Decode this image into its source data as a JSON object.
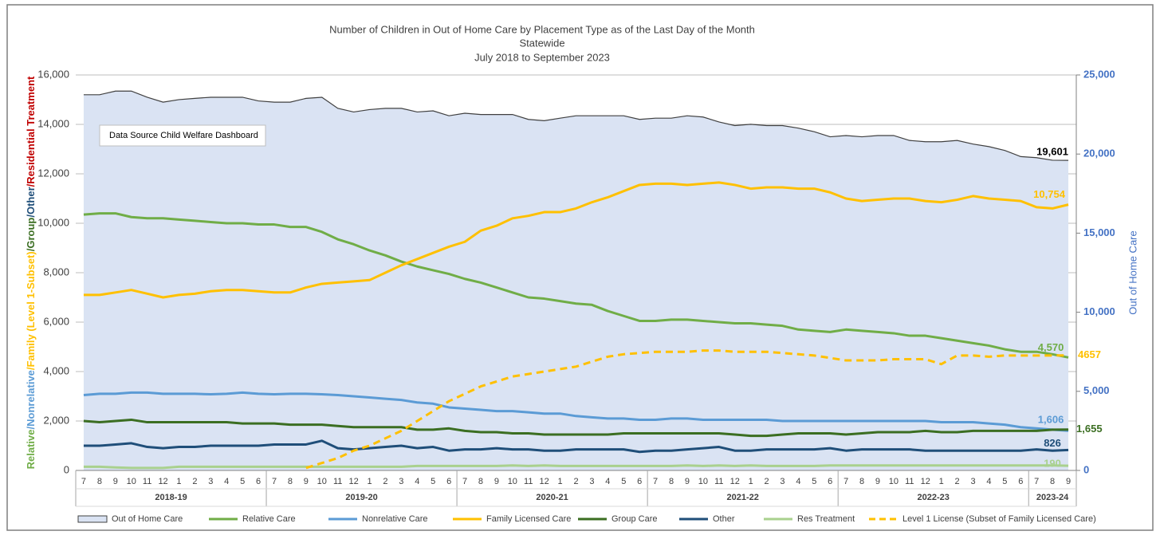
{
  "chart_data": {
    "type": "line",
    "title": [
      "Number of Children in Out of Home Care by Placement Type as of the Last Day of the Month",
      "Statewide",
      "July 2018 to September 2023"
    ],
    "annotation": "Data Source Child Welfare Dashboard",
    "ylabel_parts": [
      {
        "text": "Relative",
        "color": "#70ad47"
      },
      {
        "text": "/Nonrelative",
        "color": "#5b9bd5"
      },
      {
        "text": "/Family (Level 1-Subset)",
        "color": "#ffc000"
      },
      {
        "text": "/Group",
        "color": "#3b6e22"
      },
      {
        "text": "/Other",
        "color": "#1f4e79"
      },
      {
        "text": "/Residential Treatment",
        "color": "#c00000"
      }
    ],
    "y2label": "Out of Home Care",
    "y2label_color": "#4472c4",
    "categories": [
      "7",
      "8",
      "9",
      "10",
      "11",
      "12",
      "1",
      "2",
      "3",
      "4",
      "5",
      "6",
      "7",
      "8",
      "9",
      "10",
      "11",
      "12",
      "1",
      "2",
      "3",
      "4",
      "5",
      "6",
      "7",
      "8",
      "9",
      "10",
      "11",
      "12",
      "1",
      "2",
      "3",
      "4",
      "5",
      "6",
      "7",
      "8",
      "9",
      "10",
      "11",
      "12",
      "1",
      "2",
      "3",
      "4",
      "5",
      "6",
      "7",
      "8",
      "9",
      "10",
      "11",
      "12",
      "1",
      "2",
      "3",
      "4",
      "5",
      "6",
      "7",
      "8",
      "9"
    ],
    "x_groups": [
      {
        "label": "2018-19",
        "count": 12
      },
      {
        "label": "2019-20",
        "count": 12
      },
      {
        "label": "2020-21",
        "count": 12
      },
      {
        "label": "2021-22",
        "count": 12
      },
      {
        "label": "2022-23",
        "count": 12
      },
      {
        "label": "2023-24",
        "count": 3
      }
    ],
    "ylim": [
      0,
      16000
    ],
    "yticks": [
      0,
      {
        "value": 2000,
        "label": "2,000"
      },
      {
        "value": 4000,
        "label": "4,000"
      },
      {
        "value": 6000,
        "label": "6,000"
      },
      {
        "value": 8000,
        "label": "8,000"
      },
      {
        "value": 10000,
        "label": "10,000"
      },
      {
        "value": 12000,
        "label": "12,000"
      },
      {
        "value": 14000,
        "label": "14,000"
      },
      {
        "value": 16000,
        "label": "16,000"
      }
    ],
    "y2lim": [
      0,
      25000
    ],
    "y2ticks": [
      0,
      {
        "value": 5000,
        "label": "5,000"
      },
      {
        "value": 10000,
        "label": "10,000"
      },
      {
        "value": 15000,
        "label": "15,000"
      },
      {
        "value": 20000,
        "label": "20,000"
      },
      {
        "value": 25000,
        "label": "25,000"
      }
    ],
    "grid": true,
    "legend": "bottom",
    "series": [
      {
        "name": "Out of Home Care",
        "kind": "area",
        "axis": "y2",
        "color": "#404040",
        "fill": "#dae3f3",
        "end_label": "19,601",
        "end_label_color": "#000000",
        "values": [
          23750,
          23750,
          23980,
          23980,
          23590,
          23280,
          23440,
          23520,
          23590,
          23590,
          23590,
          23360,
          23280,
          23280,
          23520,
          23590,
          22890,
          22660,
          22810,
          22890,
          22890,
          22660,
          22730,
          22420,
          22580,
          22500,
          22500,
          22500,
          22190,
          22110,
          22270,
          22420,
          22420,
          22420,
          22420,
          22190,
          22270,
          22270,
          22420,
          22340,
          22030,
          21800,
          21880,
          21800,
          21800,
          21640,
          21410,
          21090,
          21170,
          21090,
          21170,
          21170,
          20860,
          20780,
          20780,
          20860,
          20630,
          20470,
          20230,
          19840,
          19770,
          19610,
          19601
        ]
      },
      {
        "name": "Relative Care",
        "color": "#70ad47",
        "end_label": "4,570",
        "values": [
          10350,
          10400,
          10400,
          10250,
          10200,
          10200,
          10150,
          10100,
          10050,
          10000,
          10000,
          9950,
          9950,
          9850,
          9850,
          9650,
          9350,
          9150,
          8900,
          8700,
          8450,
          8250,
          8100,
          7950,
          7750,
          7600,
          7400,
          7200,
          7000,
          6950,
          6850,
          6750,
          6700,
          6450,
          6250,
          6050,
          6050,
          6100,
          6100,
          6050,
          6000,
          5950,
          5950,
          5900,
          5850,
          5700,
          5650,
          5600,
          5700,
          5650,
          5600,
          5550,
          5450,
          5450,
          5350,
          5250,
          5150,
          5050,
          4900,
          4800,
          4800,
          4700,
          4570
        ]
      },
      {
        "name": "Nonrelative Care",
        "color": "#5b9bd5",
        "end_label": "1,606",
        "values": [
          3050,
          3100,
          3100,
          3150,
          3150,
          3100,
          3100,
          3100,
          3080,
          3100,
          3150,
          3100,
          3080,
          3100,
          3100,
          3080,
          3050,
          3000,
          2950,
          2900,
          2850,
          2750,
          2700,
          2550,
          2500,
          2450,
          2400,
          2400,
          2350,
          2300,
          2300,
          2200,
          2150,
          2100,
          2100,
          2050,
          2050,
          2100,
          2100,
          2050,
          2050,
          2050,
          2050,
          2050,
          2000,
          2000,
          2000,
          2000,
          2000,
          2000,
          2000,
          2000,
          2000,
          2000,
          1950,
          1950,
          1950,
          1900,
          1850,
          1750,
          1700,
          1650,
          1606
        ]
      },
      {
        "name": "Family Licensed Care",
        "color": "#ffc000",
        "end_label": "10,754",
        "values": [
          7100,
          7100,
          7200,
          7300,
          7150,
          7000,
          7100,
          7150,
          7250,
          7300,
          7300,
          7250,
          7200,
          7200,
          7400,
          7550,
          7600,
          7650,
          7700,
          8000,
          8300,
          8550,
          8800,
          9050,
          9250,
          9700,
          9900,
          10200,
          10300,
          10450,
          10450,
          10600,
          10850,
          11050,
          11300,
          11550,
          11600,
          11600,
          11550,
          11600,
          11650,
          11550,
          11400,
          11450,
          11450,
          11400,
          11400,
          11250,
          11000,
          10900,
          10950,
          11000,
          11000,
          10900,
          10850,
          10950,
          11100,
          11000,
          10950,
          10900,
          10650,
          10600,
          10754
        ]
      },
      {
        "name": "Group Care",
        "color": "#3b6e22",
        "end_label": "1,655",
        "values": [
          2000,
          1950,
          2000,
          2050,
          1950,
          1950,
          1950,
          1950,
          1950,
          1950,
          1900,
          1900,
          1900,
          1850,
          1850,
          1850,
          1800,
          1750,
          1750,
          1750,
          1750,
          1650,
          1650,
          1700,
          1600,
          1550,
          1550,
          1500,
          1500,
          1450,
          1450,
          1450,
          1450,
          1450,
          1500,
          1500,
          1500,
          1500,
          1500,
          1500,
          1500,
          1450,
          1400,
          1400,
          1450,
          1500,
          1500,
          1500,
          1450,
          1500,
          1550,
          1550,
          1550,
          1600,
          1550,
          1550,
          1600,
          1600,
          1600,
          1600,
          1600,
          1650,
          1655
        ]
      },
      {
        "name": "Other",
        "color": "#1f4e79",
        "values": [
          1000,
          1000,
          1050,
          1100,
          950,
          900,
          950,
          950,
          1000,
          1000,
          1000,
          1000,
          1050,
          1050,
          1050,
          1200,
          900,
          850,
          900,
          950,
          1000,
          900,
          950,
          800,
          850,
          850,
          900,
          850,
          850,
          800,
          800,
          850,
          850,
          850,
          850,
          750,
          800,
          800,
          850,
          900,
          950,
          800,
          800,
          850,
          850,
          850,
          850,
          900,
          800,
          850,
          850,
          850,
          850,
          800,
          800,
          800,
          800,
          800,
          800,
          800,
          850,
          800,
          826
        ]
      },
      {
        "name": "Res Treatment",
        "color": "#a9d18e",
        "values": [
          150,
          150,
          120,
          100,
          100,
          100,
          150,
          150,
          150,
          150,
          150,
          150,
          150,
          150,
          150,
          150,
          150,
          150,
          150,
          150,
          150,
          180,
          180,
          180,
          180,
          180,
          180,
          200,
          180,
          200,
          180,
          180,
          180,
          180,
          180,
          180,
          180,
          180,
          200,
          180,
          200,
          180,
          200,
          180,
          180,
          180,
          180,
          200,
          200,
          200,
          200,
          200,
          200,
          200,
          200,
          200,
          200,
          200,
          200,
          200,
          200,
          200,
          190
        ]
      },
      {
        "name": "Level 1 License (Subset of Family Licensed Care)",
        "color": "#ffc000",
        "dashed": true,
        "values": [
          null,
          null,
          null,
          null,
          null,
          null,
          null,
          null,
          null,
          null,
          null,
          null,
          null,
          null,
          100,
          300,
          500,
          800,
          1000,
          1300,
          1600,
          2000,
          2400,
          2800,
          3100,
          3400,
          3600,
          3800,
          3900,
          4000,
          4100,
          4200,
          4400,
          4600,
          4700,
          4750,
          4800,
          4800,
          4800,
          4850,
          4850,
          4800,
          4800,
          4800,
          4750,
          4700,
          4650,
          4550,
          4450,
          4450,
          4450,
          4500,
          4500,
          4500,
          4300,
          4650,
          4650,
          4600,
          4650,
          4650,
          4650,
          4650,
          4657
        ]
      }
    ]
  }
}
